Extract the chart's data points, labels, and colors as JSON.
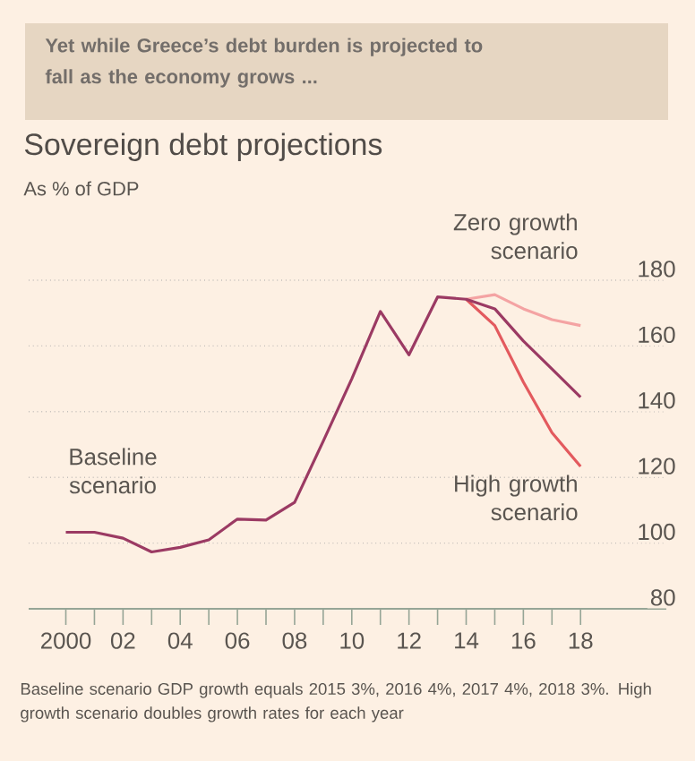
{
  "chart_data": {
    "type": "line",
    "title": "Yet while Greece’s debt burden is projected to fall as the economy grows ...",
    "subtitle": "Sovereign debt projections",
    "ylabel": "As % of GDP",
    "x": [
      2000,
      2001,
      2002,
      2003,
      2004,
      2005,
      2006,
      2007,
      2008,
      2009,
      2010,
      2011,
      2012,
      2013,
      2014,
      2015,
      2016,
      2017,
      2018
    ],
    "series": [
      {
        "name": "Zero growth scenario",
        "color": "#f4a3a3",
        "x": [
          2014,
          2015,
          2016,
          2017,
          2018
        ],
        "values": [
          174.2,
          175.6,
          171.3,
          168,
          166.2
        ]
      },
      {
        "name": "High growth scenario",
        "color": "#e35a5e",
        "x": [
          2014,
          2015,
          2016,
          2017,
          2018
        ],
        "values": [
          174.2,
          166.2,
          149,
          133.6,
          123.3
        ]
      },
      {
        "name": "Baseline scenario",
        "color": "#9b3a63",
        "values": [
          103.3,
          103.3,
          101.5,
          97.3,
          98.7,
          101,
          107.3,
          107,
          112.4,
          131,
          150,
          170.5,
          157.3,
          174.9,
          174.2,
          171.3,
          161.5,
          153,
          144.4
        ]
      }
    ],
    "xlim": [
      1998.7,
      2021
    ],
    "xticks": [
      2000,
      {
        "value": 2001,
        "label": null
      },
      {
        "value": 2002,
        "label": "02"
      },
      {
        "value": 2003,
        "label": null
      },
      {
        "value": 2004,
        "label": "04"
      },
      {
        "value": 2005,
        "label": null
      },
      {
        "value": 2006,
        "label": "06"
      },
      {
        "value": 2007,
        "label": null
      },
      {
        "value": 2008,
        "label": "08"
      },
      {
        "value": 2009,
        "label": null
      },
      {
        "value": 2010,
        "label": "10"
      },
      {
        "value": 2011,
        "label": null
      },
      {
        "value": 2012,
        "label": "12"
      },
      {
        "value": 2013,
        "label": null
      },
      {
        "value": 2014,
        "label": "14"
      },
      {
        "value": 2015,
        "label": null
      },
      {
        "value": 2016,
        "label": "16"
      },
      {
        "value": 2017,
        "label": null
      },
      {
        "value": 2018,
        "label": "18"
      }
    ],
    "ylim": [
      80,
      180
    ],
    "yticks": [
      80,
      100,
      120,
      140,
      160,
      180
    ],
    "grid": "y",
    "line_style": "solid",
    "annotations": [
      "Baseline scenario GDP growth equals 2015 3%, 2016 4%, 2017 4%, 2018 3%. High growth scenario doubles growth rates for each year"
    ]
  }
}
